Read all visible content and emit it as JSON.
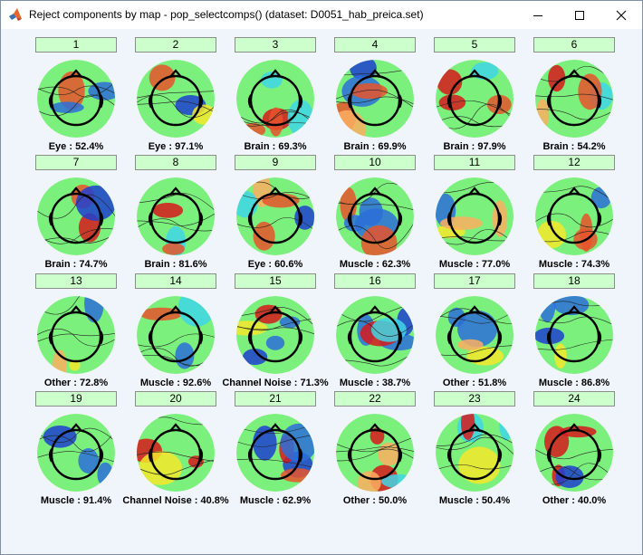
{
  "window": {
    "title": "Reject components by map - pop_selectcomps() (dataset: D0051_hab_preica.set)",
    "icon": "matlab-icon",
    "controls": [
      "minimize-icon",
      "maximize-icon",
      "close-icon"
    ]
  },
  "components": [
    {
      "number": "1",
      "label": "Eye : 52.4%"
    },
    {
      "number": "2",
      "label": "Eye : 97.1%"
    },
    {
      "number": "3",
      "label": "Brain : 69.3%"
    },
    {
      "number": "4",
      "label": "Brain : 69.9%"
    },
    {
      "number": "5",
      "label": "Brain : 97.9%"
    },
    {
      "number": "6",
      "label": "Brain : 54.2%"
    },
    {
      "number": "7",
      "label": "Brain : 74.7%"
    },
    {
      "number": "8",
      "label": "Brain : 81.6%"
    },
    {
      "number": "9",
      "label": "Eye : 60.6%"
    },
    {
      "number": "10",
      "label": "Muscle : 62.3%"
    },
    {
      "number": "11",
      "label": "Muscle : 77.0%"
    },
    {
      "number": "12",
      "label": "Muscle : 74.3%"
    },
    {
      "number": "13",
      "label": "Other : 72.8%"
    },
    {
      "number": "14",
      "label": "Muscle : 92.6%"
    },
    {
      "number": "15",
      "label": "Channel Noise : 71.3%"
    },
    {
      "number": "16",
      "label": "Muscle : 38.7%"
    },
    {
      "number": "17",
      "label": "Other : 51.8%"
    },
    {
      "number": "18",
      "label": "Muscle : 86.8%"
    },
    {
      "number": "19",
      "label": "Muscle : 91.4%"
    },
    {
      "number": "20",
      "label": "Channel Noise : 40.8%"
    },
    {
      "number": "21",
      "label": "Muscle : 62.9%"
    },
    {
      "number": "22",
      "label": "Other : 50.0%"
    },
    {
      "number": "23",
      "label": "Muscle : 50.4%"
    },
    {
      "number": "24",
      "label": "Other : 40.0%"
    }
  ],
  "colors": {
    "button_bg": "#ccffcc",
    "panel_bg": "#f0f5fc",
    "map_base": "#7cf07c",
    "map_red": "#d7191c",
    "map_yellow": "#f5e82a",
    "map_blue": "#1f3fd0",
    "map_cyan": "#3fd6e6"
  }
}
